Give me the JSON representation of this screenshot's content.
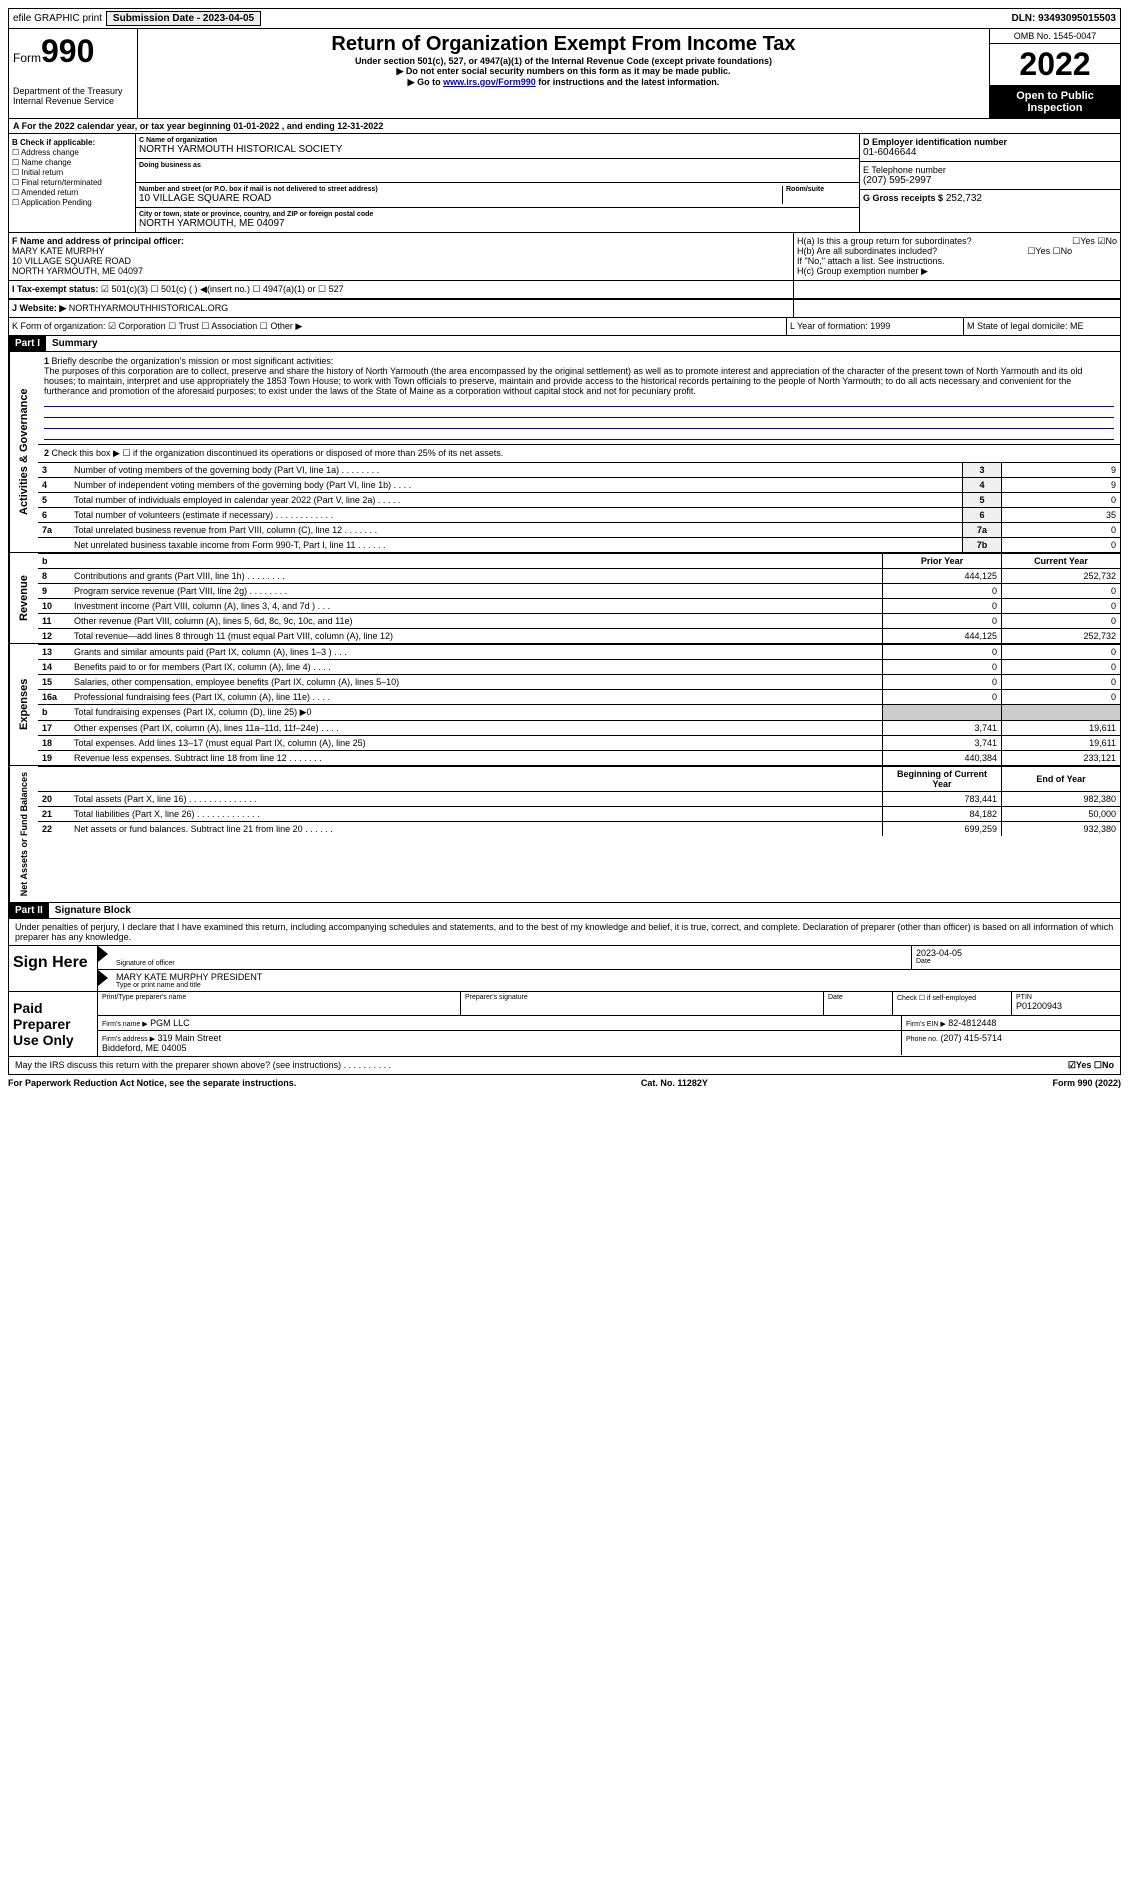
{
  "top": {
    "efile": "efile GRAPHIC print",
    "submission_label": "Submission Date - 2023-04-05",
    "dln": "DLN: 93493095015503"
  },
  "header": {
    "form_word": "Form",
    "form_num": "990",
    "dept": "Department of the Treasury\nInternal Revenue Service",
    "title": "Return of Organization Exempt From Income Tax",
    "sub1": "Under section 501(c), 527, or 4947(a)(1) of the Internal Revenue Code (except private foundations)",
    "sub2": "▶ Do not enter social security numbers on this form as it may be made public.",
    "sub3_pre": "▶ Go to ",
    "sub3_link": "www.irs.gov/Form990",
    "sub3_post": " for instructions and the latest information.",
    "omb": "OMB No. 1545-0047",
    "year": "2022",
    "inspect": "Open to Public Inspection"
  },
  "secA": "A For the 2022 calendar year, or tax year beginning 01-01-2022   , and ending 12-31-2022",
  "colB": {
    "title": "B Check if applicable:",
    "opts": [
      "☐ Address change",
      "☐ Name change",
      "☐ Initial return",
      "☐ Final return/terminated",
      "☐ Amended return",
      "☐ Application Pending"
    ]
  },
  "colC": {
    "name_lbl": "C Name of organization",
    "name": "NORTH YARMOUTH HISTORICAL SOCIETY",
    "dba_lbl": "Doing business as",
    "addr_lbl": "Number and street (or P.O. box if mail is not delivered to street address)",
    "addr": "10 VILLAGE SQUARE ROAD",
    "room_lbl": "Room/suite",
    "city_lbl": "City or town, state or province, country, and ZIP or foreign postal code",
    "city": "NORTH YARMOUTH, ME  04097"
  },
  "colD": {
    "ein_lbl": "D Employer identification number",
    "ein": "01-6046644",
    "tel_lbl": "E Telephone number",
    "tel": "(207) 595-2997",
    "gross_lbl": "G Gross receipts $",
    "gross": "252,732"
  },
  "rowF": {
    "f_lbl": "F Name and address of principal officer:",
    "f_name": "MARY KATE MURPHY",
    "f_addr1": "10 VILLAGE SQUARE ROAD",
    "f_addr2": "NORTH YARMOUTH, ME  04097",
    "ha": "H(a)  Is this a group return for subordinates?",
    "ha_ans": "☐Yes ☑No",
    "hb": "H(b)  Are all subordinates included?",
    "hb_ans": "☐Yes ☐No",
    "hb_note": "If \"No,\" attach a list. See instructions.",
    "hc": "H(c)  Group exemption number ▶"
  },
  "rowI": {
    "label": "I  Tax-exempt status:",
    "opts": "☑ 501(c)(3)   ☐ 501(c) (  ) ◀(insert no.)   ☐ 4947(a)(1) or   ☐ 527"
  },
  "rowJ": {
    "label": "J  Website: ▶",
    "val": "NORTHYARMOUTHHISTORICAL.ORG"
  },
  "rowK": {
    "label": "K Form of organization:  ☑ Corporation ☐ Trust ☐ Association ☐ Other ▶",
    "l": "L Year of formation: 1999",
    "m": "M State of legal domicile: ME"
  },
  "part1": {
    "hdr": "Part I",
    "title": "Summary",
    "q1_lbl": "1",
    "q1": "Briefly describe the organization's mission or most significant activities:",
    "mission": "The purposes of this corporation are to collect, preserve and share the history of North Yarmouth (the area encompassed by the original settlement) as well as to promote interest and appreciation of the character of the present town of North Yarmouth and its old houses; to maintain, interpret and use appropriately the 1853 Town House; to work with Town officials to preserve, maintain and provide access to the historical records pertaining to the people of North Yarmouth; to do all acts necessary and convenient for the furtherance and promotion of the aforesaid purposes; to exist under the laws of the State of Maine as a corporation without capital stock and not for pecuniary profit.",
    "q2": "Check this box ▶ ☐ if the organization discontinued its operations or disposed of more than 25% of its net assets.",
    "vlabel_ag": "Activities & Governance",
    "vlabel_rev": "Revenue",
    "vlabel_exp": "Expenses",
    "vlabel_net": "Net Assets or Fund Balances",
    "rows_ag": [
      {
        "n": "3",
        "t": "Number of voting members of the governing body (Part VI, line 1a)  .   .   .   .   .   .   .   .",
        "box": "3",
        "v": "9"
      },
      {
        "n": "4",
        "t": "Number of independent voting members of the governing body (Part VI, line 1b)  .   .   .   .",
        "box": "4",
        "v": "9"
      },
      {
        "n": "5",
        "t": "Total number of individuals employed in calendar year 2022 (Part V, line 2a)  .   .   .   .   .",
        "box": "5",
        "v": "0"
      },
      {
        "n": "6",
        "t": "Total number of volunteers (estimate if necessary)  .   .   .   .   .   .   .   .   .   .   .   .",
        "box": "6",
        "v": "35"
      },
      {
        "n": "7a",
        "t": "Total unrelated business revenue from Part VIII, column (C), line 12  .   .   .   .   .   .   .",
        "box": "7a",
        "v": "0"
      },
      {
        "n": "",
        "t": "Net unrelated business taxable income from Form 990-T, Part I, line 11  .   .   .   .   .   .",
        "box": "7b",
        "v": "0"
      }
    ],
    "hdr_prior": "Prior Year",
    "hdr_curr": "Current Year",
    "rows_rev": [
      {
        "n": "8",
        "t": "Contributions and grants (Part VIII, line 1h)  .   .   .   .   .   .   .   .",
        "p": "444,125",
        "c": "252,732"
      },
      {
        "n": "9",
        "t": "Program service revenue (Part VIII, line 2g)  .   .   .   .   .   .   .   .",
        "p": "0",
        "c": "0"
      },
      {
        "n": "10",
        "t": "Investment income (Part VIII, column (A), lines 3, 4, and 7d )  .   .   .",
        "p": "0",
        "c": "0"
      },
      {
        "n": "11",
        "t": "Other revenue (Part VIII, column (A), lines 5, 6d, 8c, 9c, 10c, and 11e)",
        "p": "0",
        "c": "0"
      },
      {
        "n": "12",
        "t": "Total revenue—add lines 8 through 11 (must equal Part VIII, column (A), line 12)",
        "p": "444,125",
        "c": "252,732"
      }
    ],
    "rows_exp": [
      {
        "n": "13",
        "t": "Grants and similar amounts paid (Part IX, column (A), lines 1–3 )  .   .   .",
        "p": "0",
        "c": "0"
      },
      {
        "n": "14",
        "t": "Benefits paid to or for members (Part IX, column (A), line 4)  .   .   .   .",
        "p": "0",
        "c": "0"
      },
      {
        "n": "15",
        "t": "Salaries, other compensation, employee benefits (Part IX, column (A), lines 5–10)",
        "p": "0",
        "c": "0"
      },
      {
        "n": "16a",
        "t": "Professional fundraising fees (Part IX, column (A), line 11e)  .   .   .   .",
        "p": "0",
        "c": "0"
      },
      {
        "n": "b",
        "t": "Total fundraising expenses (Part IX, column (D), line 25) ▶0",
        "p": "",
        "c": "",
        "grey": true
      },
      {
        "n": "17",
        "t": "Other expenses (Part IX, column (A), lines 11a–11d, 11f–24e)  .   .   .   .",
        "p": "3,741",
        "c": "19,611"
      },
      {
        "n": "18",
        "t": "Total expenses. Add lines 13–17 (must equal Part IX, column (A), line 25)",
        "p": "3,741",
        "c": "19,611"
      },
      {
        "n": "19",
        "t": "Revenue less expenses. Subtract line 18 from line 12  .   .   .   .   .   .   .",
        "p": "440,384",
        "c": "233,121"
      }
    ],
    "hdr_beg": "Beginning of Current Year",
    "hdr_end": "End of Year",
    "rows_net": [
      {
        "n": "20",
        "t": "Total assets (Part X, line 16)  .   .   .   .   .   .   .   .   .   .   .   .   .   .",
        "p": "783,441",
        "c": "982,380"
      },
      {
        "n": "21",
        "t": "Total liabilities (Part X, line 26)  .   .   .   .   .   .   .   .   .   .   .   .   .",
        "p": "84,182",
        "c": "50,000"
      },
      {
        "n": "22",
        "t": "Net assets or fund balances. Subtract line 21 from line 20  .   .   .   .   .   .",
        "p": "699,259",
        "c": "932,380"
      }
    ]
  },
  "part2": {
    "hdr": "Part II",
    "title": "Signature Block",
    "decl": "Under penalties of perjury, I declare that I have examined this return, including accompanying schedules and statements, and to the best of my knowledge and belief, it is true, correct, and complete. Declaration of preparer (other than officer) is based on all information of which preparer has any knowledge.",
    "sign_here": "Sign Here",
    "sig_officer": "Signature of officer",
    "date": "2023-04-05",
    "date_lbl": "Date",
    "officer": "MARY KATE MURPHY PRESIDENT",
    "officer_lbl": "Type or print name and title",
    "paid": "Paid Preparer Use Only",
    "prep_name_lbl": "Print/Type preparer's name",
    "prep_sig_lbl": "Preparer's signature",
    "prep_date_lbl": "Date",
    "check_self": "Check ☐ if self-employed",
    "ptin_lbl": "PTIN",
    "ptin": "P01200943",
    "firm_name_lbl": "Firm's name   ▶",
    "firm_name": "PGM LLC",
    "firm_ein_lbl": "Firm's EIN ▶",
    "firm_ein": "82-4812448",
    "firm_addr_lbl": "Firm's address ▶",
    "firm_addr": "319 Main Street\nBiddeford, ME  04005",
    "phone_lbl": "Phone no.",
    "phone": "(207) 415-5714",
    "discuss": "May the IRS discuss this return with the preparer shown above? (see instructions)  .   .   .   .   .   .   .   .   .   .",
    "discuss_ans": "☑Yes  ☐No"
  },
  "footer": {
    "pra": "For Paperwork Reduction Act Notice, see the separate instructions.",
    "cat": "Cat. No. 11282Y",
    "form": "Form 990 (2022)"
  }
}
